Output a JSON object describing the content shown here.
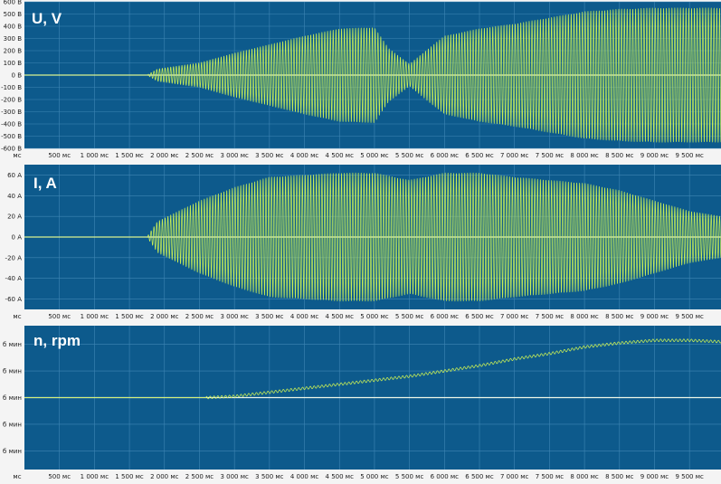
{
  "colors": {
    "plot_bg": "#0d5a8c",
    "grid": "#3f86b4",
    "signal": "#c9ef55",
    "baseline": "#eef7e8",
    "page_bg": "#f4f4f4"
  },
  "x_tick_labels": [
    "мс",
    "500 мс",
    "1 000 мс",
    "1 500 мс",
    "2 000 мс",
    "2 500 мс",
    "3 000 мс",
    "3 500 мс",
    "4 000 мс",
    "4 500 мс",
    "5 000 мс",
    "5 500 мс",
    "6 000 мс",
    "6 500 мс",
    "7 000 мс",
    "7 500 мс",
    "8 000 мс",
    "8 500 мс",
    "9 000 мс",
    "9 500 мс"
  ],
  "chart_data": [
    {
      "type": "line",
      "title": "U, V",
      "xlim": [
        0,
        9950
      ],
      "ylim": [
        -600,
        600
      ],
      "y_ticks": [
        600,
        500,
        400,
        300,
        200,
        100,
        0,
        -100,
        -200,
        -300,
        -400,
        -500,
        -600
      ],
      "y_tick_labels": [
        "600 В",
        "500 В",
        "400 В",
        "300 В",
        "200 В",
        "100 В",
        "0 В",
        "-100 В",
        "-200 В",
        "-300 В",
        "-400 В",
        "-500 В",
        "-600 В"
      ],
      "grid": true,
      "series": [
        {
          "envelope_ms": [
            0,
            1750,
            1900,
            2500,
            3000,
            3500,
            4000,
            4500,
            5000,
            5200,
            5500,
            5800,
            6000,
            6500,
            7000,
            7500,
            8000,
            8500,
            9000,
            9500,
            9950
          ],
          "envelope_amp": [
            0,
            0,
            50,
            100,
            180,
            250,
            320,
            380,
            390,
            220,
            90,
            230,
            320,
            380,
            420,
            470,
            520,
            540,
            550,
            550,
            550
          ],
          "period_ms": 40
        }
      ]
    },
    {
      "type": "line",
      "title": "I, A",
      "xlim": [
        0,
        9950
      ],
      "ylim": [
        -70,
        70
      ],
      "y_ticks": [
        60,
        40,
        20,
        0,
        -20,
        -40,
        -60
      ],
      "y_tick_labels": [
        "60 A",
        "40 A",
        "20 A",
        "0 A",
        "-20 A",
        "-40 A",
        "-60 A"
      ],
      "grid": true,
      "series": [
        {
          "envelope_ms": [
            0,
            1750,
            1900,
            2200,
            2500,
            3000,
            3500,
            4000,
            4500,
            5000,
            5500,
            6000,
            6500,
            7000,
            7500,
            8000,
            8500,
            9000,
            9500,
            9950
          ],
          "envelope_amp": [
            0,
            0,
            15,
            25,
            35,
            48,
            58,
            60,
            62,
            62,
            55,
            62,
            62,
            58,
            55,
            52,
            45,
            35,
            25,
            20
          ],
          "period_ms": 40
        }
      ]
    },
    {
      "type": "line",
      "title": "n, rpm",
      "xlim": [
        0,
        9950
      ],
      "ylim": [
        -2.7,
        2.7
      ],
      "y_ticks": [
        2,
        1,
        0,
        -1,
        -2
      ],
      "y_tick_labels": [
        "б мин",
        "б мин",
        "б мин",
        "б мин",
        "б мин"
      ],
      "grid": true,
      "series": [
        {
          "x_ms": [
            0,
            2600,
            3000,
            3500,
            4000,
            4500,
            5000,
            5500,
            6000,
            6500,
            7000,
            7500,
            8000,
            8500,
            9000,
            9500,
            9950
          ],
          "y": [
            0,
            0,
            0.05,
            0.2,
            0.35,
            0.5,
            0.65,
            0.8,
            1.0,
            1.2,
            1.45,
            1.65,
            1.9,
            2.05,
            2.15,
            2.15,
            2.1
          ],
          "ripple": 0.05
        }
      ]
    }
  ]
}
